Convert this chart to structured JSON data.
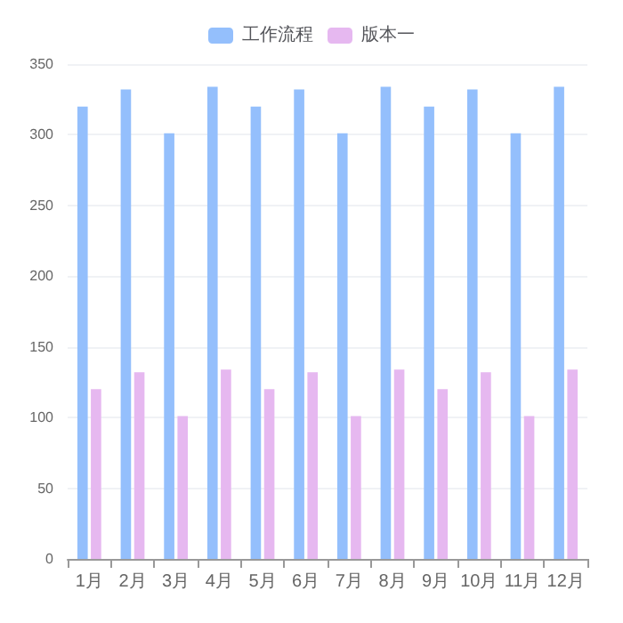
{
  "chart_data": {
    "type": "bar",
    "categories": [
      "1月",
      "2月",
      "3月",
      "4月",
      "5月",
      "6月",
      "7月",
      "8月",
      "9月",
      "10月",
      "11月",
      "12月"
    ],
    "series": [
      {
        "name": "工作流程",
        "color": "#94bffc",
        "values": [
          320,
          332,
          301,
          334,
          320,
          332,
          301,
          334,
          320,
          332,
          301,
          334
        ]
      },
      {
        "name": "版本一",
        "color": "#e6b8f0",
        "values": [
          120,
          132,
          101,
          134,
          120,
          132,
          101,
          134,
          120,
          132,
          101,
          134
        ]
      }
    ],
    "ylim": [
      0,
      350
    ],
    "yticks": [
      0,
      50,
      100,
      150,
      200,
      250,
      300,
      350
    ],
    "grid": "y",
    "legend": "top"
  }
}
